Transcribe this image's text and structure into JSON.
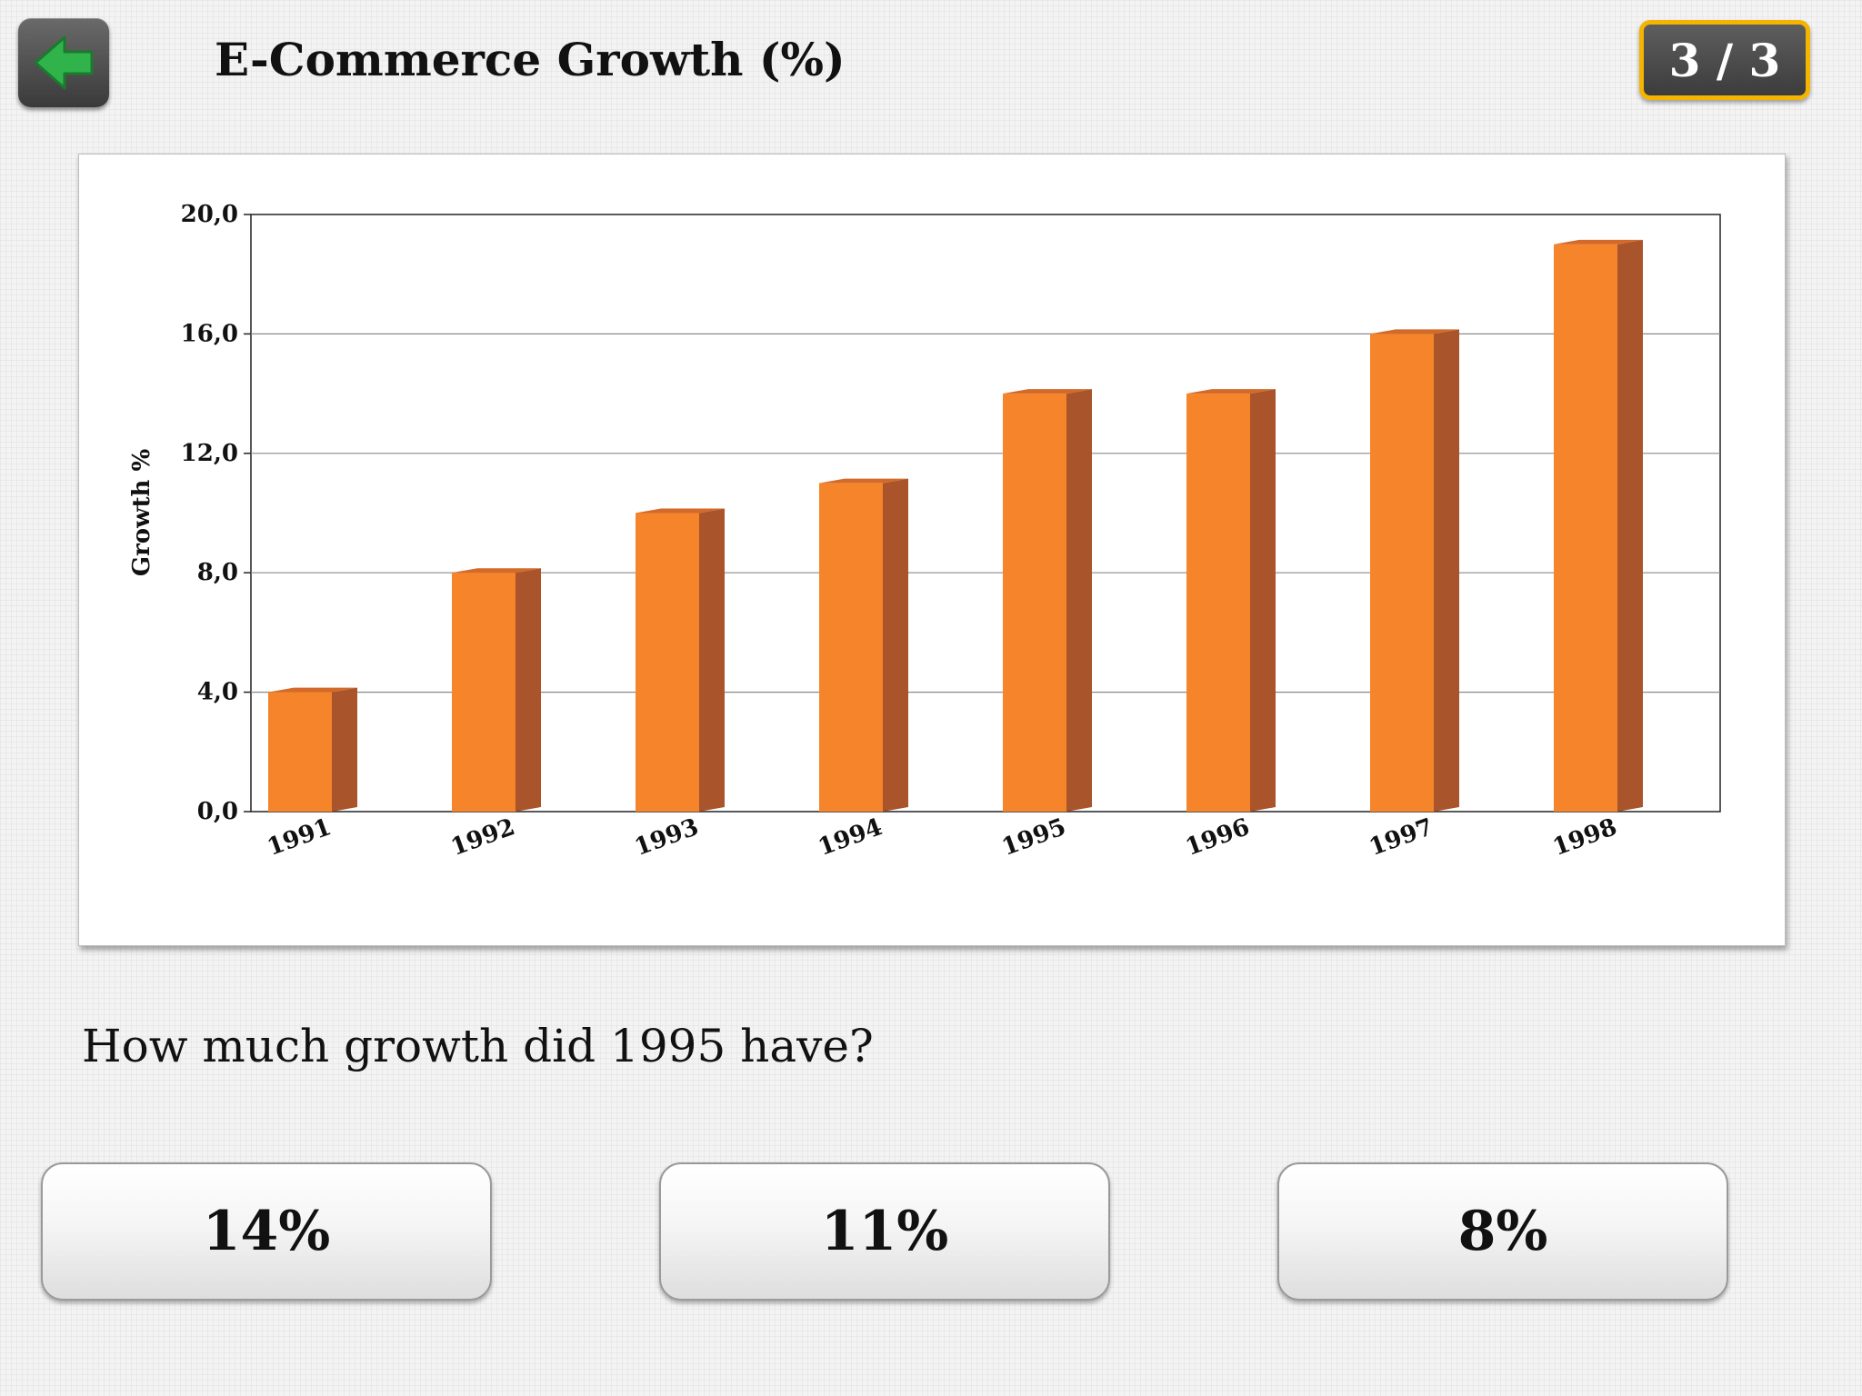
{
  "header": {
    "title": "E-Commerce Growth (%)",
    "counter": "3 / 3",
    "back_icon": "green-arrow-left-icon"
  },
  "question": "How much growth did 1995 have?",
  "answers": [
    "14%",
    "11%",
    "8%"
  ],
  "colors": {
    "bar_front": "#f5842a",
    "bar_side": "#a9542b",
    "bar_top": "#d36a2a",
    "counter_border": "#f4b400",
    "back_arrow": "#2fb34a"
  },
  "chart_data": {
    "type": "bar",
    "categories": [
      "1991",
      "1992",
      "1993",
      "1994",
      "1995",
      "1996",
      "1997",
      "1998"
    ],
    "values": [
      4,
      8,
      10,
      11,
      14,
      14,
      16,
      19
    ],
    "ylabel": "Growth %",
    "xlabel": "",
    "ylim": [
      0,
      20
    ],
    "yticks": [
      "0,0",
      "4,0",
      "8,0",
      "12,0",
      "16,0",
      "20,0"
    ],
    "grid": true,
    "legend": "none"
  }
}
